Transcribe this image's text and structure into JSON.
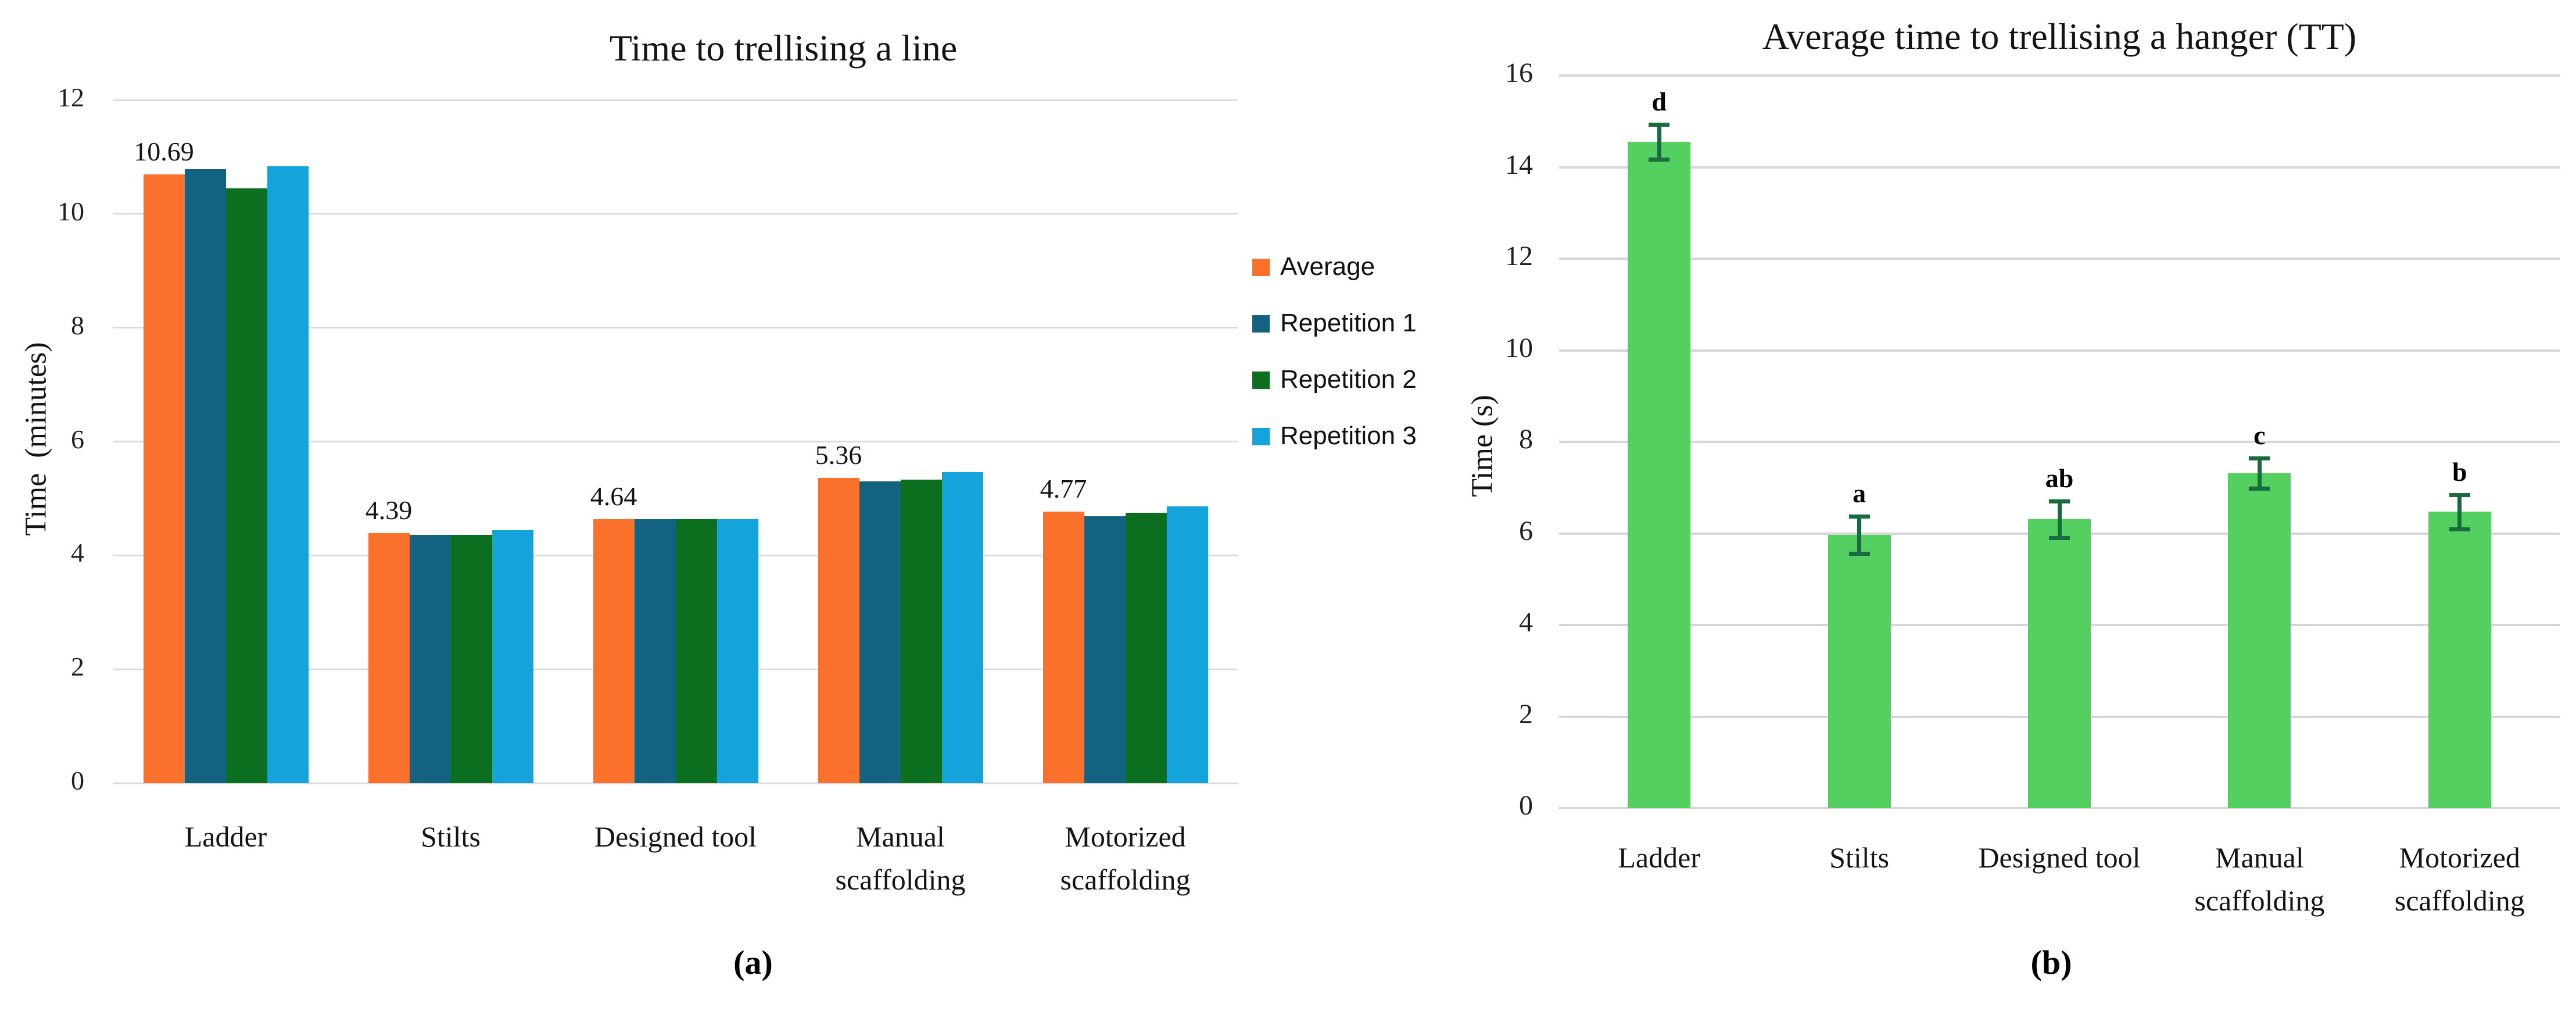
{
  "figure": {
    "captions": {
      "a": "(a)",
      "b": "(b)"
    }
  },
  "chart_data": [
    {
      "type": "bar",
      "title": "Time to trellising a line",
      "ylabel": "Time  (minutes)",
      "xlabel": "",
      "ylim": [
        0,
        12
      ],
      "yticks": [
        0,
        2,
        4,
        6,
        8,
        10,
        12
      ],
      "grid": true,
      "legend_position": "right",
      "categories": [
        "Ladder",
        "Stilts",
        "Designed tool",
        "Manual\nscaffolding",
        "Motorized\nscaffolding"
      ],
      "series": [
        {
          "name": "Average",
          "color": "#F9712A",
          "values": [
            10.69,
            4.39,
            4.64,
            5.36,
            4.77
          ]
        },
        {
          "name": "Repetition 1",
          "color": "#136280",
          "values": [
            10.78,
            4.36,
            4.64,
            5.3,
            4.69
          ]
        },
        {
          "name": "Repetition 2",
          "color": "#0B6F1F",
          "values": [
            10.45,
            4.36,
            4.64,
            5.33,
            4.75
          ]
        },
        {
          "name": "Repetition 3",
          "color": "#14A3DB",
          "values": [
            10.84,
            4.44,
            4.64,
            5.46,
            4.86
          ]
        }
      ],
      "data_labels": [
        "10.69",
        "4.39",
        "4.64",
        "5.36",
        "4.77"
      ]
    },
    {
      "type": "bar",
      "title": "Average time to trellising a hanger (TT)",
      "ylabel": "Time (s)",
      "xlabel": "",
      "ylim": [
        0,
        16
      ],
      "yticks": [
        0,
        2,
        4,
        6,
        8,
        10,
        12,
        14,
        16
      ],
      "grid": true,
      "legend_position": "none",
      "bar_color": "#53D060",
      "error_bar_color": "#186B3C",
      "categories": [
        "Ladder",
        "Stilts",
        "Designed tool",
        "Manual\nscaffolding",
        "Motorized\nscaffolding"
      ],
      "values": [
        14.55,
        5.97,
        6.31,
        7.31,
        6.47
      ],
      "errors": [
        0.38,
        0.41,
        0.4,
        0.33,
        0.37
      ],
      "significance_letters": [
        "d",
        "a",
        "ab",
        "c",
        "b"
      ]
    }
  ]
}
